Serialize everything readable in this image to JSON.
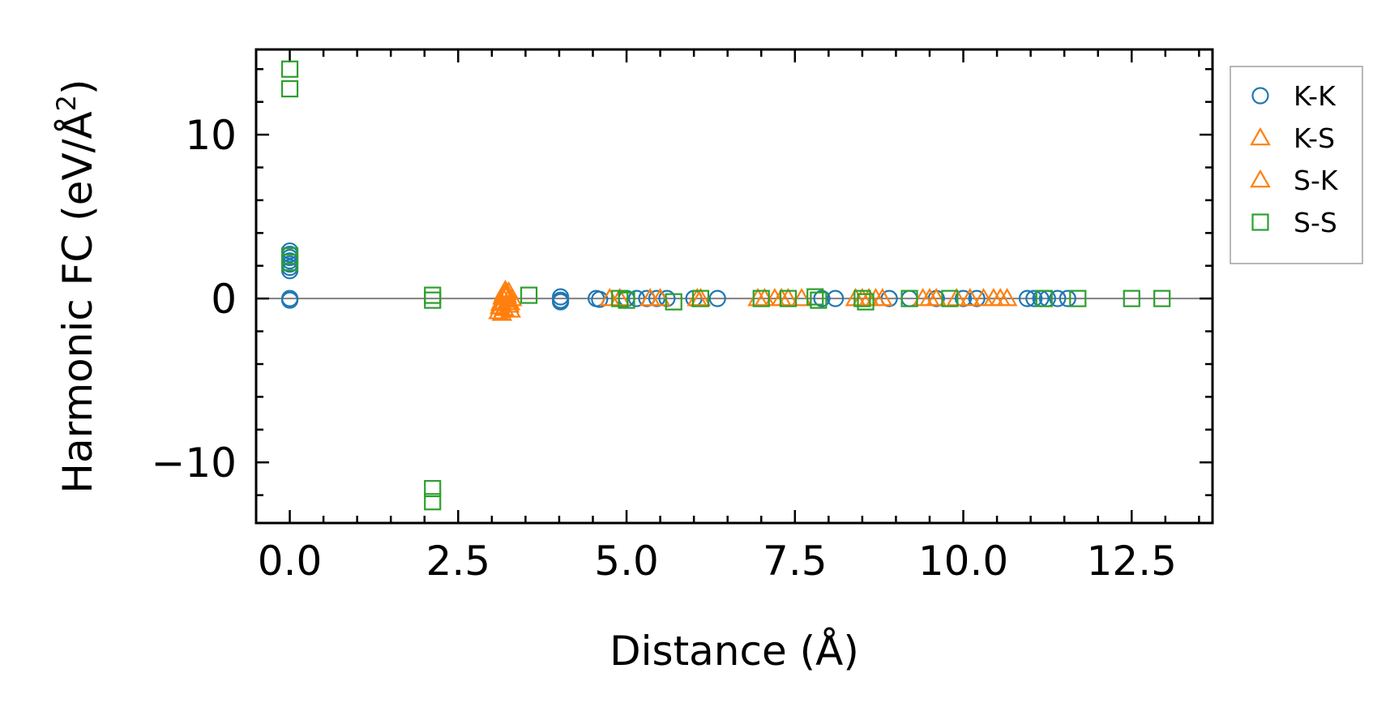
{
  "chart_data": {
    "type": "scatter",
    "xlabel": "Distance (Å)",
    "ylabel_main": "Harmonic FC (eV/Å",
    "ylabel_sup": "2",
    "ylabel_close": ")",
    "xlim": [
      -0.5,
      13.7
    ],
    "ylim": [
      -13.7,
      15.2
    ],
    "xticks": [
      0.0,
      2.5,
      5.0,
      7.5,
      10.0,
      12.5
    ],
    "xtick_labels": [
      "0.0",
      "2.5",
      "5.0",
      "7.5",
      "10.0",
      "12.5"
    ],
    "yticks": [
      -10,
      0,
      10
    ],
    "ytick_labels": [
      "−10",
      "0",
      "10"
    ],
    "zero_line": 0,
    "legend_position": "outside-right-top",
    "series": [
      {
        "name": "K-K",
        "marker": "circle",
        "color": "#1f77b4",
        "points": [
          [
            0.0,
            0.0
          ],
          [
            0.0,
            -0.1
          ],
          [
            0.0,
            2.9
          ],
          [
            0.0,
            2.7
          ],
          [
            0.0,
            2.5
          ],
          [
            0.0,
            2.3
          ],
          [
            0.0,
            2.1
          ],
          [
            0.0,
            1.9
          ],
          [
            0.0,
            1.7
          ],
          [
            4.02,
            0.1
          ],
          [
            4.02,
            -0.1
          ],
          [
            4.02,
            -0.2
          ],
          [
            4.55,
            0.0
          ],
          [
            4.6,
            -0.05
          ],
          [
            5.0,
            0.0
          ],
          [
            5.15,
            0.0
          ],
          [
            5.3,
            0.0
          ],
          [
            5.45,
            0.0
          ],
          [
            5.6,
            0.0
          ],
          [
            6.0,
            0.0
          ],
          [
            6.35,
            0.0
          ],
          [
            7.9,
            0.0
          ],
          [
            8.1,
            0.0
          ],
          [
            8.9,
            0.0
          ],
          [
            9.2,
            0.0
          ],
          [
            9.6,
            0.0
          ],
          [
            10.0,
            0.0
          ],
          [
            10.2,
            0.0
          ],
          [
            10.95,
            0.0
          ],
          [
            11.05,
            0.0
          ],
          [
            11.15,
            0.0
          ],
          [
            11.25,
            0.0
          ],
          [
            11.4,
            0.0
          ],
          [
            11.55,
            0.0
          ]
        ]
      },
      {
        "name": "K-S",
        "marker": "triangle",
        "color": "#ff7f0e",
        "points": [
          [
            3.1,
            -0.8
          ],
          [
            3.12,
            -0.5
          ],
          [
            3.14,
            -0.2
          ],
          [
            3.16,
            0.1
          ],
          [
            3.18,
            0.3
          ],
          [
            3.2,
            0.5
          ],
          [
            3.22,
            0.2
          ],
          [
            3.24,
            -0.1
          ],
          [
            3.26,
            -0.4
          ],
          [
            3.28,
            -0.7
          ],
          [
            3.15,
            -0.9
          ],
          [
            3.25,
            0.4
          ],
          [
            3.3,
            0.0
          ],
          [
            3.18,
            -0.6
          ],
          [
            4.75,
            0.0
          ],
          [
            5.5,
            0.0
          ],
          [
            6.1,
            0.0
          ],
          [
            6.95,
            0.0
          ],
          [
            7.2,
            0.0
          ],
          [
            7.4,
            0.0
          ],
          [
            8.4,
            0.0
          ],
          [
            8.6,
            0.0
          ],
          [
            8.8,
            0.0
          ],
          [
            9.4,
            0.0
          ],
          [
            9.6,
            0.0
          ],
          [
            9.9,
            0.0
          ],
          [
            10.3,
            0.0
          ],
          [
            10.55,
            0.0
          ]
        ]
      },
      {
        "name": "S-K",
        "marker": "triangle",
        "color": "#ff7f0e",
        "points": [
          [
            3.13,
            -0.3
          ],
          [
            3.21,
            0.35
          ],
          [
            3.27,
            -0.25
          ],
          [
            4.9,
            0.0
          ],
          [
            5.35,
            0.0
          ],
          [
            6.05,
            0.0
          ],
          [
            7.05,
            0.0
          ],
          [
            7.3,
            0.0
          ],
          [
            7.6,
            0.0
          ],
          [
            8.5,
            0.0
          ],
          [
            8.7,
            0.0
          ],
          [
            9.5,
            0.0
          ],
          [
            10.1,
            0.0
          ],
          [
            10.45,
            0.0
          ],
          [
            10.65,
            0.0
          ]
        ]
      },
      {
        "name": "S-S",
        "marker": "square",
        "color": "#2ca02c",
        "points": [
          [
            0.0,
            14.0
          ],
          [
            0.0,
            12.8
          ],
          [
            0.0,
            2.6
          ],
          [
            0.0,
            2.2
          ],
          [
            2.12,
            0.2
          ],
          [
            2.12,
            -0.1
          ],
          [
            2.12,
            -11.6
          ],
          [
            2.12,
            -12.4
          ],
          [
            3.55,
            0.2
          ],
          [
            4.9,
            0.0
          ],
          [
            5.0,
            -0.1
          ],
          [
            5.7,
            -0.2
          ],
          [
            6.1,
            0.0
          ],
          [
            7.0,
            0.0
          ],
          [
            7.4,
            0.0
          ],
          [
            7.8,
            0.1
          ],
          [
            7.85,
            -0.1
          ],
          [
            8.5,
            0.0
          ],
          [
            8.55,
            -0.2
          ],
          [
            9.2,
            0.0
          ],
          [
            9.8,
            0.0
          ],
          [
            11.2,
            0.0
          ],
          [
            11.7,
            0.0
          ],
          [
            12.5,
            0.0
          ],
          [
            12.95,
            0.0
          ]
        ]
      }
    ]
  }
}
